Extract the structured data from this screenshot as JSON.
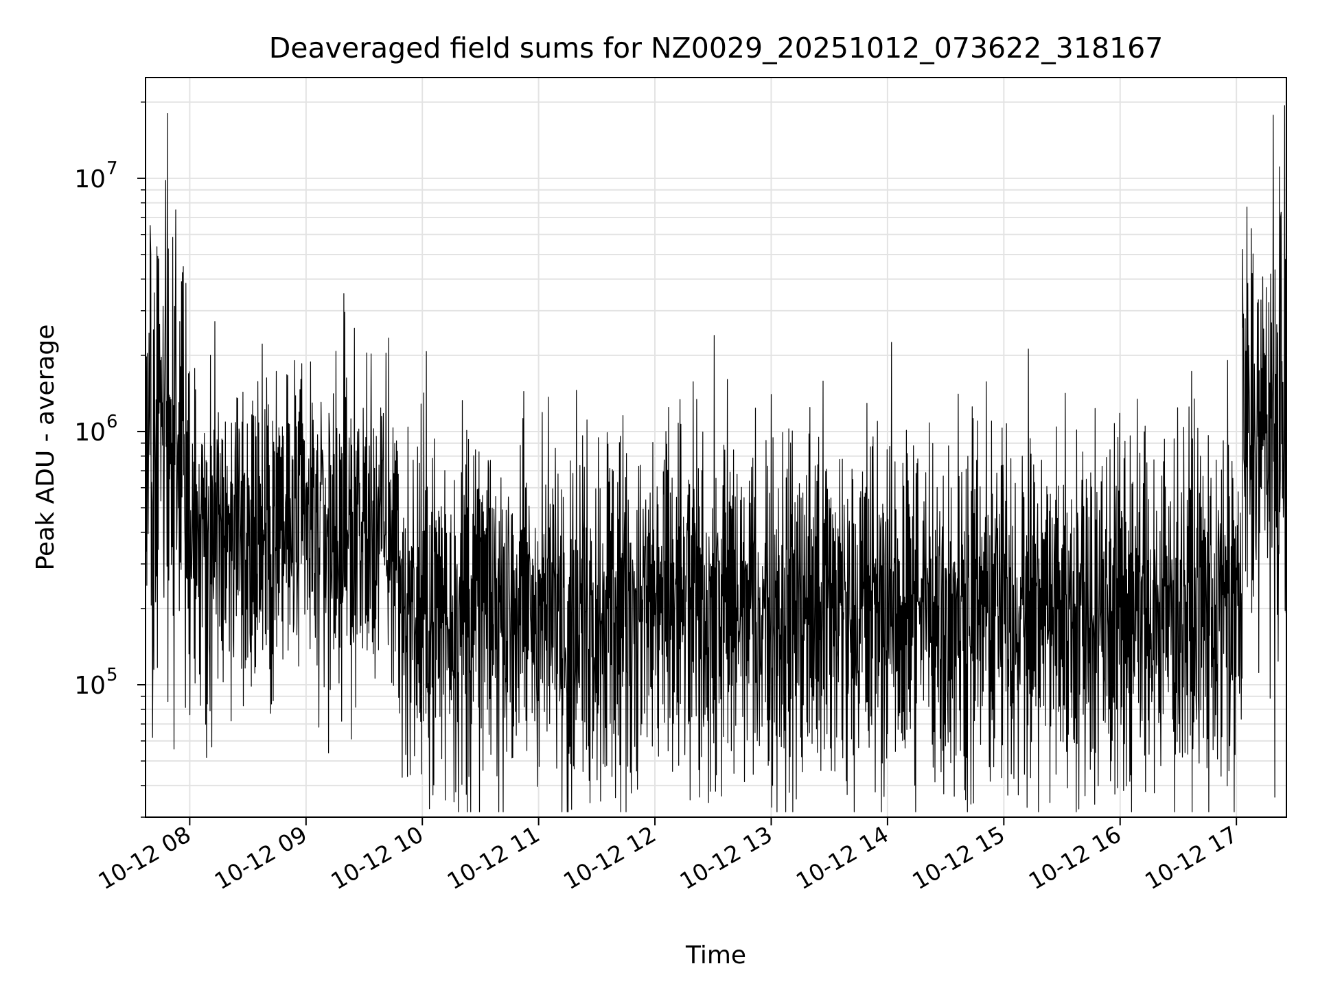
{
  "chart_data": {
    "type": "line",
    "title": "Deaveraged field sums for NZ0029_20251012_073622_318167",
    "xlabel": "Time",
    "ylabel": "Peak ADU - average",
    "yscale": "log",
    "ylim": [
      30000,
      25000000
    ],
    "xlim_hours": [
      7.62,
      17.43
    ],
    "grid": true,
    "x_tick_labels": [
      "10-12 08",
      "10-12 09",
      "10-12 10",
      "10-12 11",
      "10-12 12",
      "10-12 13",
      "10-12 14",
      "10-12 15",
      "10-12 16",
      "10-12 17"
    ],
    "x_tick_hours": [
      8,
      9,
      10,
      11,
      12,
      13,
      14,
      15,
      16,
      17
    ],
    "y_tick_labels": [
      {
        "base": "10",
        "exp": "5"
      },
      {
        "base": "10",
        "exp": "6"
      },
      {
        "base": "10",
        "exp": "7"
      }
    ],
    "y_tick_values": [
      100000,
      1000000,
      10000000
    ],
    "series": [
      {
        "name": "field sums",
        "color": "#000000",
        "segments": [
          {
            "t0": 7.62,
            "t1": 7.95,
            "center": 1000000,
            "spread": 1.3
          },
          {
            "t0": 7.95,
            "t1": 9.8,
            "center": 400000,
            "spread": 1.0
          },
          {
            "t0": 9.8,
            "t1": 17.05,
            "center": 200000,
            "spread": 1.05
          },
          {
            "t0": 17.05,
            "t1": 17.43,
            "center": 1000000,
            "spread": 1.2
          }
        ],
        "notable_points": [
          {
            "t": 7.81,
            "value": 18000000
          },
          {
            "t": 7.66,
            "value": 6500000
          },
          {
            "t": 7.88,
            "value": 7500000
          },
          {
            "t": 17.38,
            "value": 7000000
          },
          {
            "t": 17.33,
            "value": 36000
          },
          {
            "t": 7.68,
            "value": 62000
          },
          {
            "t": 16.35,
            "value": 48000
          }
        ]
      }
    ]
  }
}
